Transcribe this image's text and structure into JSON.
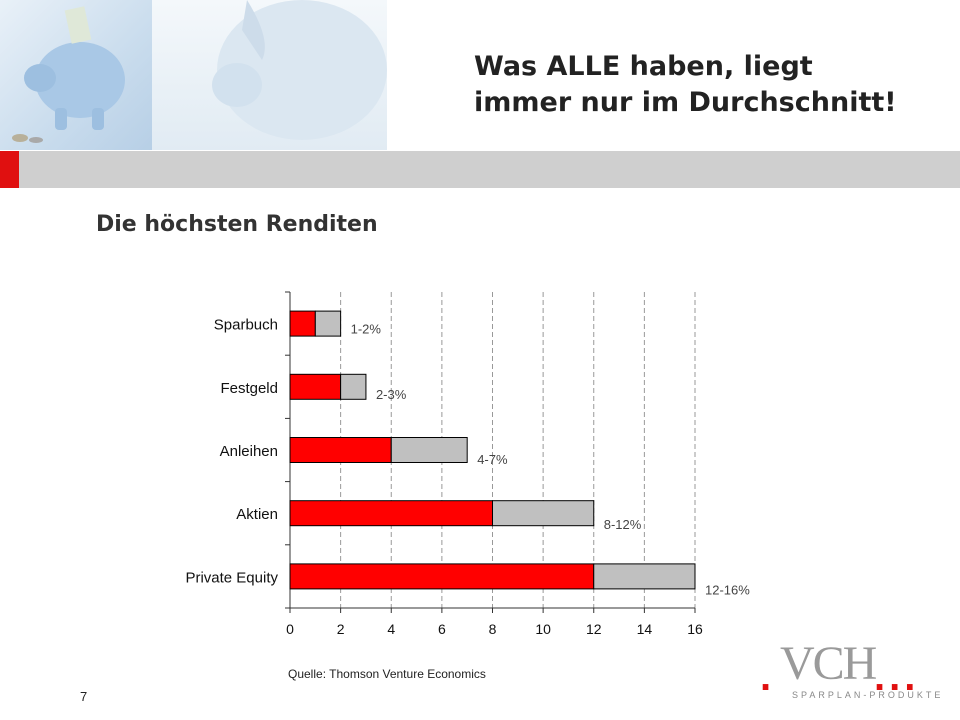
{
  "header": {
    "title_line1": "Was ALLE haben, liegt",
    "title_line2": "immer nur im Durchschnitt!"
  },
  "subtitle": "Die höchsten Renditen",
  "colors": {
    "accent_red": "#ff0000",
    "range_gray": "#c0c0c0",
    "band_gray": "#cfcfcf"
  },
  "chart_data": {
    "type": "bar",
    "orientation": "horizontal",
    "stacked": true,
    "categories": [
      "Sparbuch",
      "Festgeld",
      "Anleihen",
      "Aktien",
      "Private Equity"
    ],
    "series": [
      {
        "values": [
          1,
          2,
          4,
          8,
          12
        ],
        "color": "#ff0000"
      },
      {
        "values": [
          1,
          1,
          3,
          4,
          4
        ],
        "color": "#c0c0c0"
      }
    ],
    "data_labels": [
      "1-2%",
      "2-3%",
      "4-7%",
      "8-12%",
      "12-16%"
    ],
    "xlim": [
      0,
      16
    ],
    "xticks": [
      0,
      2,
      4,
      6,
      8,
      10,
      12,
      14,
      16
    ],
    "grid": "vertical dashed",
    "xlabel": "",
    "ylabel": ""
  },
  "source": "Quelle: Thomson Venture Economics",
  "page_number": "7",
  "logo": {
    "text": "VCH",
    "tagline": "SPARPLAN-PRODUKTE"
  }
}
